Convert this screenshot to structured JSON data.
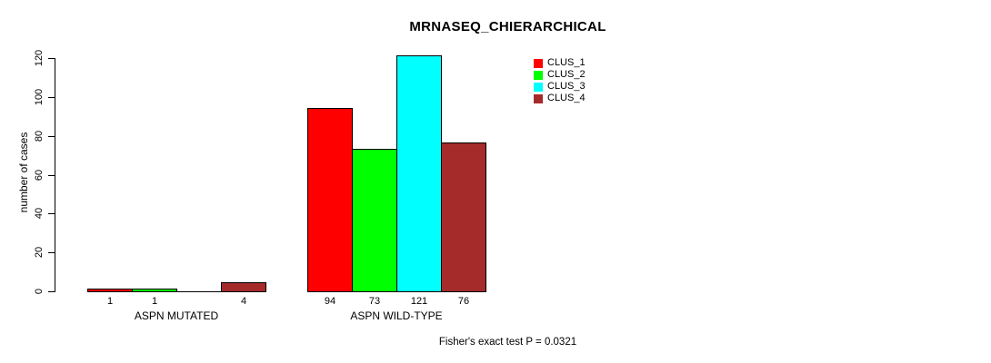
{
  "chart_data": {
    "type": "bar",
    "title": "MRNASEQ_CHIERARCHICAL",
    "xlabel": "",
    "ylabel": "number of cases",
    "ylim": [
      0,
      120
    ],
    "yticks": [
      0,
      20,
      40,
      60,
      80,
      100,
      120
    ],
    "grid": false,
    "legend_position": "top-right",
    "categories": [
      "ASPN MUTATED",
      "ASPN WILD-TYPE"
    ],
    "series": [
      {
        "name": "CLUS_1",
        "color": "#ff0000",
        "values": [
          1,
          94
        ]
      },
      {
        "name": "CLUS_2",
        "color": "#00ff00",
        "values": [
          1,
          73
        ]
      },
      {
        "name": "CLUS_3",
        "color": "#00ffff",
        "values": [
          0,
          121
        ]
      },
      {
        "name": "CLUS_4",
        "color": "#a52a2a",
        "values": [
          4,
          76
        ]
      }
    ],
    "bar_labels": [
      [
        "1",
        "1",
        "",
        "4"
      ],
      [
        "94",
        "73",
        "121",
        "76"
      ]
    ],
    "annotation": "Fisher's exact test P = 0.0321",
    "colors": {
      "bar_border": "#000000",
      "axis": "#000000",
      "background": "#ffffff"
    }
  }
}
